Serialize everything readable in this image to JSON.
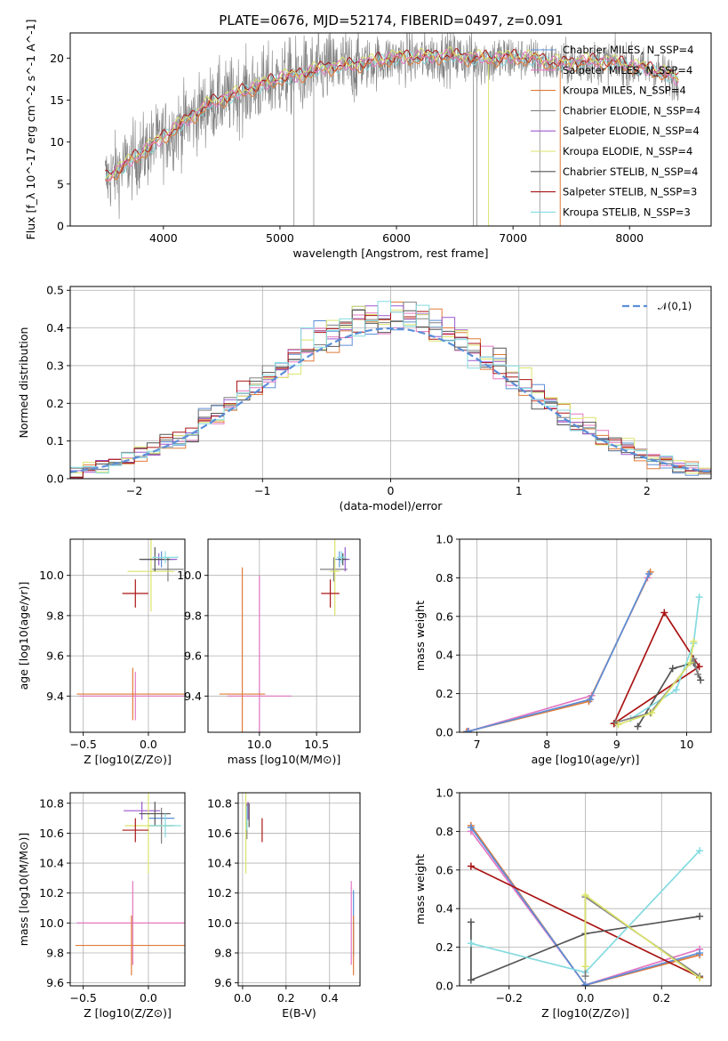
{
  "figure": {
    "title": "PLATE=0676, MJD=52174, FIBERID=0497, z=0.091",
    "colors": {
      "chabrier_miles": "#5b8fd8",
      "salpeter_miles": "#e377c2",
      "kroupa_miles": "#e07b39",
      "chabrier_elodie": "#808080",
      "salpeter_elodie": "#9b59d0",
      "kroupa_elodie": "#dbe36a",
      "chabrier_stelib": "#555555",
      "salpeter_stelib": "#aa1515",
      "kroupa_stelib": "#84dbe0",
      "gaussian": "#5b8fd8"
    }
  },
  "chart_data": [
    {
      "id": "spectrum",
      "type": "line",
      "title": "PLATE=0676, MJD=52174, FIBERID=0497, z=0.091",
      "xlabel": "wavelength [Angstrom, rest frame]",
      "ylabel": "Flux [f_λ 10^-17 erg cm^-2 s^-1 A^-1]",
      "xlim": [
        3200,
        8700
      ],
      "ylim": [
        0,
        23
      ],
      "xticks": [
        4000,
        5000,
        6000,
        7000,
        8000
      ],
      "yticks": [
        0,
        5,
        10,
        15,
        20
      ],
      "grid": false,
      "legend_position": "top-right",
      "legend": [
        "Chabrier MILES, N_SSP=4",
        "Salpeter MILES, N_SSP=4",
        "Kroupa MILES, N_SSP=4",
        "Chabrier ELODIE, N_SSP=4",
        "Salpeter ELODIE, N_SSP=4",
        "Kroupa ELODIE, N_SSP=4",
        "Chabrier STELIB, N_SSP=4",
        "Salpeter STELIB, N_SSP=3",
        "Kroupa STELIB, N_SSP=3"
      ],
      "continuum_wavelength": [
        3500,
        3700,
        3900,
        4000,
        4200,
        4400,
        4600,
        4800,
        5000,
        5200,
        5400,
        5600,
        5800,
        6000,
        6200,
        6400,
        6600,
        6800,
        7000,
        7200,
        7400,
        7600,
        7800,
        8000,
        8200,
        8400
      ],
      "continuum_flux": [
        5.5,
        7.5,
        9.5,
        10.5,
        12.5,
        14.5,
        15.5,
        16.5,
        17.5,
        18.0,
        18.8,
        19.0,
        19.5,
        20.0,
        20.0,
        20.2,
        20.0,
        19.8,
        20.0,
        19.8,
        19.2,
        19.5,
        19.5,
        19.0,
        18.5,
        17.5
      ]
    },
    {
      "id": "residuals",
      "type": "histogram",
      "xlabel": "(data-model)/error",
      "ylabel": "Normed distribution",
      "xlim": [
        -2.5,
        2.5
      ],
      "ylim": [
        0,
        0.51
      ],
      "xticks": [
        -2,
        -1,
        0,
        1,
        2
      ],
      "yticks": [
        0.0,
        0.1,
        0.2,
        0.3,
        0.4,
        0.5
      ],
      "grid": true,
      "legend_position": "top-right",
      "legend": [
        "𝒩(0,1)"
      ],
      "reference_curve": "normal density, mean 0, sigma 1"
    },
    {
      "id": "age-vs-Z",
      "type": "errorbar",
      "xlabel": "Z [log10(Z/Z⊙)]",
      "ylabel": "age [log10(age/yr)]",
      "xlim": [
        -0.6,
        0.28
      ],
      "ylim": [
        9.22,
        10.18
      ],
      "xticks": [
        -0.5,
        0.0
      ],
      "yticks": [
        9.4,
        9.6,
        9.8,
        10.0
      ],
      "grid": true,
      "points": [
        {
          "color": "chabrier_miles",
          "x": 0.1,
          "xerr": 0.1,
          "y": 10.08,
          "yerr": 0.04
        },
        {
          "color": "salpeter_miles",
          "x": -0.1,
          "xerr": 0.43,
          "y": 9.4,
          "yerr": 0.12
        },
        {
          "color": "kroupa_miles",
          "x": -0.12,
          "xerr": 0.43,
          "y": 9.41,
          "yerr": 0.13
        },
        {
          "color": "chabrier_elodie",
          "x": 0.15,
          "xerr": 0.12,
          "y": 10.03,
          "yerr": 0.06
        },
        {
          "color": "salpeter_elodie",
          "x": 0.08,
          "xerr": 0.14,
          "y": 10.08,
          "yerr": 0.03
        },
        {
          "color": "kroupa_elodie",
          "x": 0.02,
          "xerr": 0.18,
          "y": 10.02,
          "yerr": 0.2
        },
        {
          "color": "chabrier_stelib",
          "x": 0.05,
          "xerr": 0.12,
          "y": 10.08,
          "yerr": 0.06
        },
        {
          "color": "salpeter_stelib",
          "x": -0.1,
          "xerr": 0.1,
          "y": 9.91,
          "yerr": 0.07
        },
        {
          "color": "kroupa_stelib",
          "x": 0.13,
          "xerr": 0.1,
          "y": 10.09,
          "yerr": 0.03
        }
      ]
    },
    {
      "id": "age-vs-mass",
      "type": "errorbar",
      "xlabel": "mass [log10(M/M⊙)]",
      "ylabel": "",
      "xlim": [
        9.55,
        10.88
      ],
      "ylim": [
        9.22,
        10.18
      ],
      "xticks": [
        10.0,
        10.5
      ],
      "yticks": [
        9.4,
        9.6,
        9.8,
        10.0
      ],
      "grid": true,
      "points": [
        {
          "color": "chabrier_miles",
          "x": 10.7,
          "xerr": 0.04,
          "y": 10.08,
          "yerr": 0.04
        },
        {
          "color": "salpeter_miles",
          "x": 10.0,
          "xerr": 0.28,
          "y": 9.4,
          "yerr": 0.6
        },
        {
          "color": "kroupa_miles",
          "x": 9.85,
          "xerr": 0.2,
          "y": 9.41,
          "yerr": 0.63
        },
        {
          "color": "chabrier_elodie",
          "x": 10.65,
          "xerr": 0.12,
          "y": 10.03,
          "yerr": 0.06
        },
        {
          "color": "salpeter_elodie",
          "x": 10.75,
          "xerr": 0.04,
          "y": 10.08,
          "yerr": 0.06
        },
        {
          "color": "kroupa_elodie",
          "x": 10.66,
          "xerr": 0.04,
          "y": 10.02,
          "yerr": 0.22
        },
        {
          "color": "chabrier_stelib",
          "x": 10.73,
          "xerr": 0.04,
          "y": 10.08,
          "yerr": 0.03
        },
        {
          "color": "salpeter_stelib",
          "x": 10.62,
          "xerr": 0.08,
          "y": 9.91,
          "yerr": 0.07
        },
        {
          "color": "kroupa_stelib",
          "x": 10.72,
          "xerr": 0.04,
          "y": 10.09,
          "yerr": 0.03
        }
      ]
    },
    {
      "id": "weight-vs-age",
      "type": "line",
      "xlabel": "age [log10(age/yr)]",
      "ylabel": "mass weight",
      "xlim": [
        6.75,
        10.35
      ],
      "ylim": [
        0,
        1.0
      ],
      "xticks": [
        7,
        8,
        9,
        10
      ],
      "yticks": [
        0.0,
        0.2,
        0.4,
        0.6,
        0.8,
        1.0
      ],
      "grid": true,
      "series": [
        {
          "color": "salpeter_miles",
          "x": [
            6.88,
            8.64,
            9.44
          ],
          "y": [
            0.005,
            0.19,
            0.8
          ]
        },
        {
          "color": "kroupa_miles",
          "x": [
            6.85,
            8.6,
            9.48
          ],
          "y": [
            0.003,
            0.16,
            0.83
          ]
        },
        {
          "color": "chabrier_miles",
          "x": [
            6.87,
            8.62,
            9.46
          ],
          "y": [
            0.004,
            0.17,
            0.82
          ]
        },
        {
          "color": "salpeter_stelib",
          "x": [
            8.96,
            9.68,
            10.18,
            8.96
          ],
          "y": [
            0.045,
            0.62,
            0.34,
            0.045
          ]
        },
        {
          "color": "chabrier_stelib",
          "x": [
            9.3,
            9.8,
            10.1,
            10.2
          ],
          "y": [
            0.03,
            0.33,
            0.36,
            0.27
          ]
        },
        {
          "color": "kroupa_stelib",
          "x": [
            9.2,
            9.85,
            10.1,
            10.18
          ],
          "y": [
            0.07,
            0.22,
            0.46,
            0.7
          ]
        },
        {
          "color": "chabrier_elodie",
          "x": [
            8.98,
            9.48,
            10.1,
            10.16
          ],
          "y": [
            0.05,
            0.1,
            0.38,
            0.3
          ]
        },
        {
          "color": "kroupa_elodie",
          "x": [
            9.02,
            9.5,
            10.05,
            10.1
          ],
          "y": [
            0.04,
            0.1,
            0.36,
            0.47
          ]
        }
      ]
    },
    {
      "id": "mass-vs-Z",
      "type": "errorbar",
      "xlabel": "Z [log10(Z/Z⊙)]",
      "ylabel": "mass [log10(M/M⊙)]",
      "xlim": [
        -0.6,
        0.28
      ],
      "ylim": [
        9.58,
        10.87
      ],
      "xticks": [
        -0.5,
        0.0
      ],
      "yticks": [
        9.6,
        9.8,
        10.0,
        10.2,
        10.4,
        10.6,
        10.8
      ],
      "grid": true,
      "points": [
        {
          "color": "chabrier_miles",
          "x": 0.1,
          "xerr": 0.1,
          "y": 10.7,
          "yerr": 0.04
        },
        {
          "color": "salpeter_miles",
          "x": -0.12,
          "xerr": 0.43,
          "y": 10.0,
          "yerr": 0.28
        },
        {
          "color": "kroupa_miles",
          "x": -0.13,
          "xerr": 0.43,
          "y": 9.85,
          "yerr": 0.2
        },
        {
          "color": "chabrier_elodie",
          "x": 0.1,
          "xerr": 0.1,
          "y": 10.65,
          "yerr": 0.12
        },
        {
          "color": "salpeter_elodie",
          "x": -0.05,
          "xerr": 0.14,
          "y": 10.75,
          "yerr": 0.06
        },
        {
          "color": "kroupa_elodie",
          "x": 0.0,
          "xerr": 0.18,
          "y": 10.65,
          "yerr": 0.32
        },
        {
          "color": "chabrier_stelib",
          "x": 0.05,
          "xerr": 0.12,
          "y": 10.73,
          "yerr": 0.08
        },
        {
          "color": "salpeter_stelib",
          "x": -0.1,
          "xerr": 0.1,
          "y": 10.62,
          "yerr": 0.08
        },
        {
          "color": "kroupa_stelib",
          "x": 0.13,
          "xerr": 0.12,
          "y": 10.65,
          "yerr": 0.08
        }
      ]
    },
    {
      "id": "mass-vs-ebv",
      "type": "errorbar",
      "xlabel": "E(B-V)",
      "ylabel": "",
      "xlim": [
        -0.02,
        0.54
      ],
      "ylim": [
        9.58,
        10.87
      ],
      "xticks": [
        0.0,
        0.2,
        0.4
      ],
      "yticks": [
        9.6,
        9.8,
        10.0,
        10.2,
        10.4,
        10.6,
        10.8
      ],
      "grid": true,
      "points": [
        {
          "color": "chabrier_miles",
          "x": 0.51,
          "yerr": 0.22,
          "y": 10.0
        },
        {
          "color": "salpeter_miles",
          "x": 0.5,
          "yerr": 0.28,
          "y": 10.0
        },
        {
          "color": "kroupa_miles",
          "x": 0.51,
          "yerr": 0.2,
          "y": 9.85
        },
        {
          "color": "chabrier_elodie",
          "x": 0.02,
          "yerr": 0.12,
          "y": 10.68
        },
        {
          "color": "salpeter_elodie",
          "x": 0.025,
          "yerr": 0.06,
          "y": 10.75
        },
        {
          "color": "kroupa_elodie",
          "x": 0.015,
          "yerr": 0.32,
          "y": 10.65
        },
        {
          "color": "chabrier_stelib",
          "x": 0.03,
          "yerr": 0.08,
          "y": 10.72
        },
        {
          "color": "salpeter_stelib",
          "x": 0.09,
          "yerr": 0.08,
          "y": 10.62
        },
        {
          "color": "kroupa_stelib",
          "x": 0.02,
          "yerr": 0.08,
          "y": 10.7
        }
      ]
    },
    {
      "id": "weight-vs-Z",
      "type": "line",
      "xlabel": "Z [log10(Z/Z⊙)]",
      "ylabel": "mass weight",
      "xlim": [
        -0.33,
        0.33
      ],
      "ylim": [
        0,
        1.0
      ],
      "xticks": [
        -0.2,
        0.0,
        0.2
      ],
      "yticks": [
        0.0,
        0.2,
        0.4,
        0.6,
        0.8,
        1.0
      ],
      "grid": true,
      "series": [
        {
          "color": "salpeter_miles",
          "x": [
            -0.3,
            0.0,
            0.3
          ],
          "y": [
            0.8,
            0.005,
            0.19
          ]
        },
        {
          "color": "kroupa_miles",
          "x": [
            -0.3,
            0.0,
            0.3
          ],
          "y": [
            0.83,
            0.003,
            0.16
          ]
        },
        {
          "color": "chabrier_miles",
          "x": [
            -0.3,
            0.0,
            0.3
          ],
          "y": [
            0.82,
            0.004,
            0.17
          ]
        },
        {
          "color": "salpeter_stelib",
          "x": [
            -0.3,
            0.3
          ],
          "y": [
            0.62,
            0.045
          ]
        },
        {
          "color": "chabrier_stelib",
          "x": [
            -0.3,
            -0.3,
            0.0,
            0.3
          ],
          "y": [
            0.33,
            0.03,
            0.27,
            0.36
          ]
        },
        {
          "color": "kroupa_stelib",
          "x": [
            -0.3,
            0.0,
            0.3
          ],
          "y": [
            0.22,
            0.07,
            0.7
          ]
        },
        {
          "color": "chabrier_elodie",
          "x": [
            0.0,
            0.0,
            0.3
          ],
          "y": [
            0.05,
            0.46,
            0.05
          ]
        },
        {
          "color": "kroupa_elodie",
          "x": [
            0.0,
            0.0,
            0.3
          ],
          "y": [
            0.1,
            0.47,
            0.04
          ]
        }
      ]
    }
  ]
}
